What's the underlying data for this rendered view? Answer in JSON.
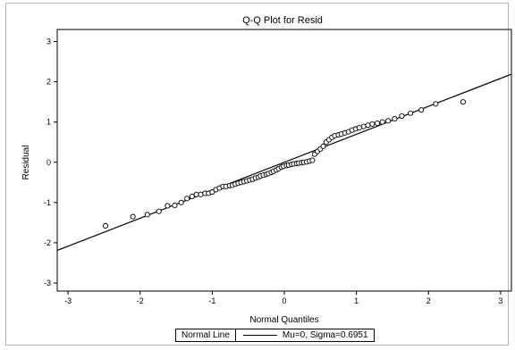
{
  "chart_data": {
    "type": "scatter",
    "title": "Q-Q Plot for Resid",
    "xlabel": "Normal Quantiles",
    "ylabel": "Residual",
    "xlim": [
      -3.15,
      3.15
    ],
    "ylim": [
      -3.2,
      3.3
    ],
    "xticks": [
      -3,
      -2,
      -1,
      0,
      1,
      2,
      3
    ],
    "yticks": [
      -3,
      -2,
      -1,
      0,
      1,
      2,
      3
    ],
    "grid": false,
    "series": [
      {
        "marker": "open-circle",
        "points": [
          [
            -2.48,
            -1.58
          ],
          [
            -2.1,
            -1.35
          ],
          [
            -1.9,
            -1.3
          ],
          [
            -1.74,
            -1.22
          ],
          [
            -1.62,
            -1.08
          ],
          [
            -1.52,
            -1.07
          ],
          [
            -1.43,
            -1.0
          ],
          [
            -1.35,
            -0.9
          ],
          [
            -1.28,
            -0.85
          ],
          [
            -1.22,
            -0.8
          ],
          [
            -1.16,
            -0.8
          ],
          [
            -1.1,
            -0.77
          ],
          [
            -1.05,
            -0.77
          ],
          [
            -1.0,
            -0.74
          ],
          [
            -0.95,
            -0.68
          ],
          [
            -0.9,
            -0.64
          ],
          [
            -0.85,
            -0.6
          ],
          [
            -0.81,
            -0.6
          ],
          [
            -0.76,
            -0.58
          ],
          [
            -0.72,
            -0.57
          ],
          [
            -0.68,
            -0.54
          ],
          [
            -0.64,
            -0.52
          ],
          [
            -0.6,
            -0.5
          ],
          [
            -0.56,
            -0.48
          ],
          [
            -0.52,
            -0.46
          ],
          [
            -0.48,
            -0.44
          ],
          [
            -0.44,
            -0.42
          ],
          [
            -0.4,
            -0.39
          ],
          [
            -0.36,
            -0.37
          ],
          [
            -0.33,
            -0.34
          ],
          [
            -0.29,
            -0.32
          ],
          [
            -0.25,
            -0.3
          ],
          [
            -0.22,
            -0.28
          ],
          [
            -0.18,
            -0.25
          ],
          [
            -0.15,
            -0.22
          ],
          [
            -0.11,
            -0.19
          ],
          [
            -0.08,
            -0.16
          ],
          [
            -0.04,
            -0.12
          ],
          [
            -0.01,
            -0.1
          ],
          [
            0.03,
            -0.08
          ],
          [
            0.06,
            -0.07
          ],
          [
            0.1,
            -0.05
          ],
          [
            0.13,
            -0.04
          ],
          [
            0.17,
            -0.03
          ],
          [
            0.2,
            -0.02
          ],
          [
            0.24,
            -0.01
          ],
          [
            0.27,
            0.0
          ],
          [
            0.31,
            0.01
          ],
          [
            0.35,
            0.03
          ],
          [
            0.39,
            0.05
          ],
          [
            0.42,
            0.2
          ],
          [
            0.46,
            0.27
          ],
          [
            0.5,
            0.33
          ],
          [
            0.54,
            0.4
          ],
          [
            0.58,
            0.5
          ],
          [
            0.62,
            0.56
          ],
          [
            0.66,
            0.62
          ],
          [
            0.7,
            0.66
          ],
          [
            0.75,
            0.68
          ],
          [
            0.79,
            0.7
          ],
          [
            0.84,
            0.73
          ],
          [
            0.89,
            0.76
          ],
          [
            0.94,
            0.8
          ],
          [
            0.99,
            0.83
          ],
          [
            1.04,
            0.86
          ],
          [
            1.1,
            0.89
          ],
          [
            1.16,
            0.92
          ],
          [
            1.22,
            0.95
          ],
          [
            1.29,
            0.97
          ],
          [
            1.36,
            1.0
          ],
          [
            1.44,
            1.03
          ],
          [
            1.53,
            1.08
          ],
          [
            1.63,
            1.15
          ],
          [
            1.75,
            1.22
          ],
          [
            1.9,
            1.3
          ],
          [
            2.1,
            1.45
          ],
          [
            2.48,
            1.5
          ]
        ]
      }
    ],
    "reference_line": {
      "mu": 0,
      "sigma": 0.6951
    },
    "legend": {
      "placement": "bottom",
      "title": "Normal Line",
      "entry": "Mu=0, Sigma=0.6951"
    }
  }
}
